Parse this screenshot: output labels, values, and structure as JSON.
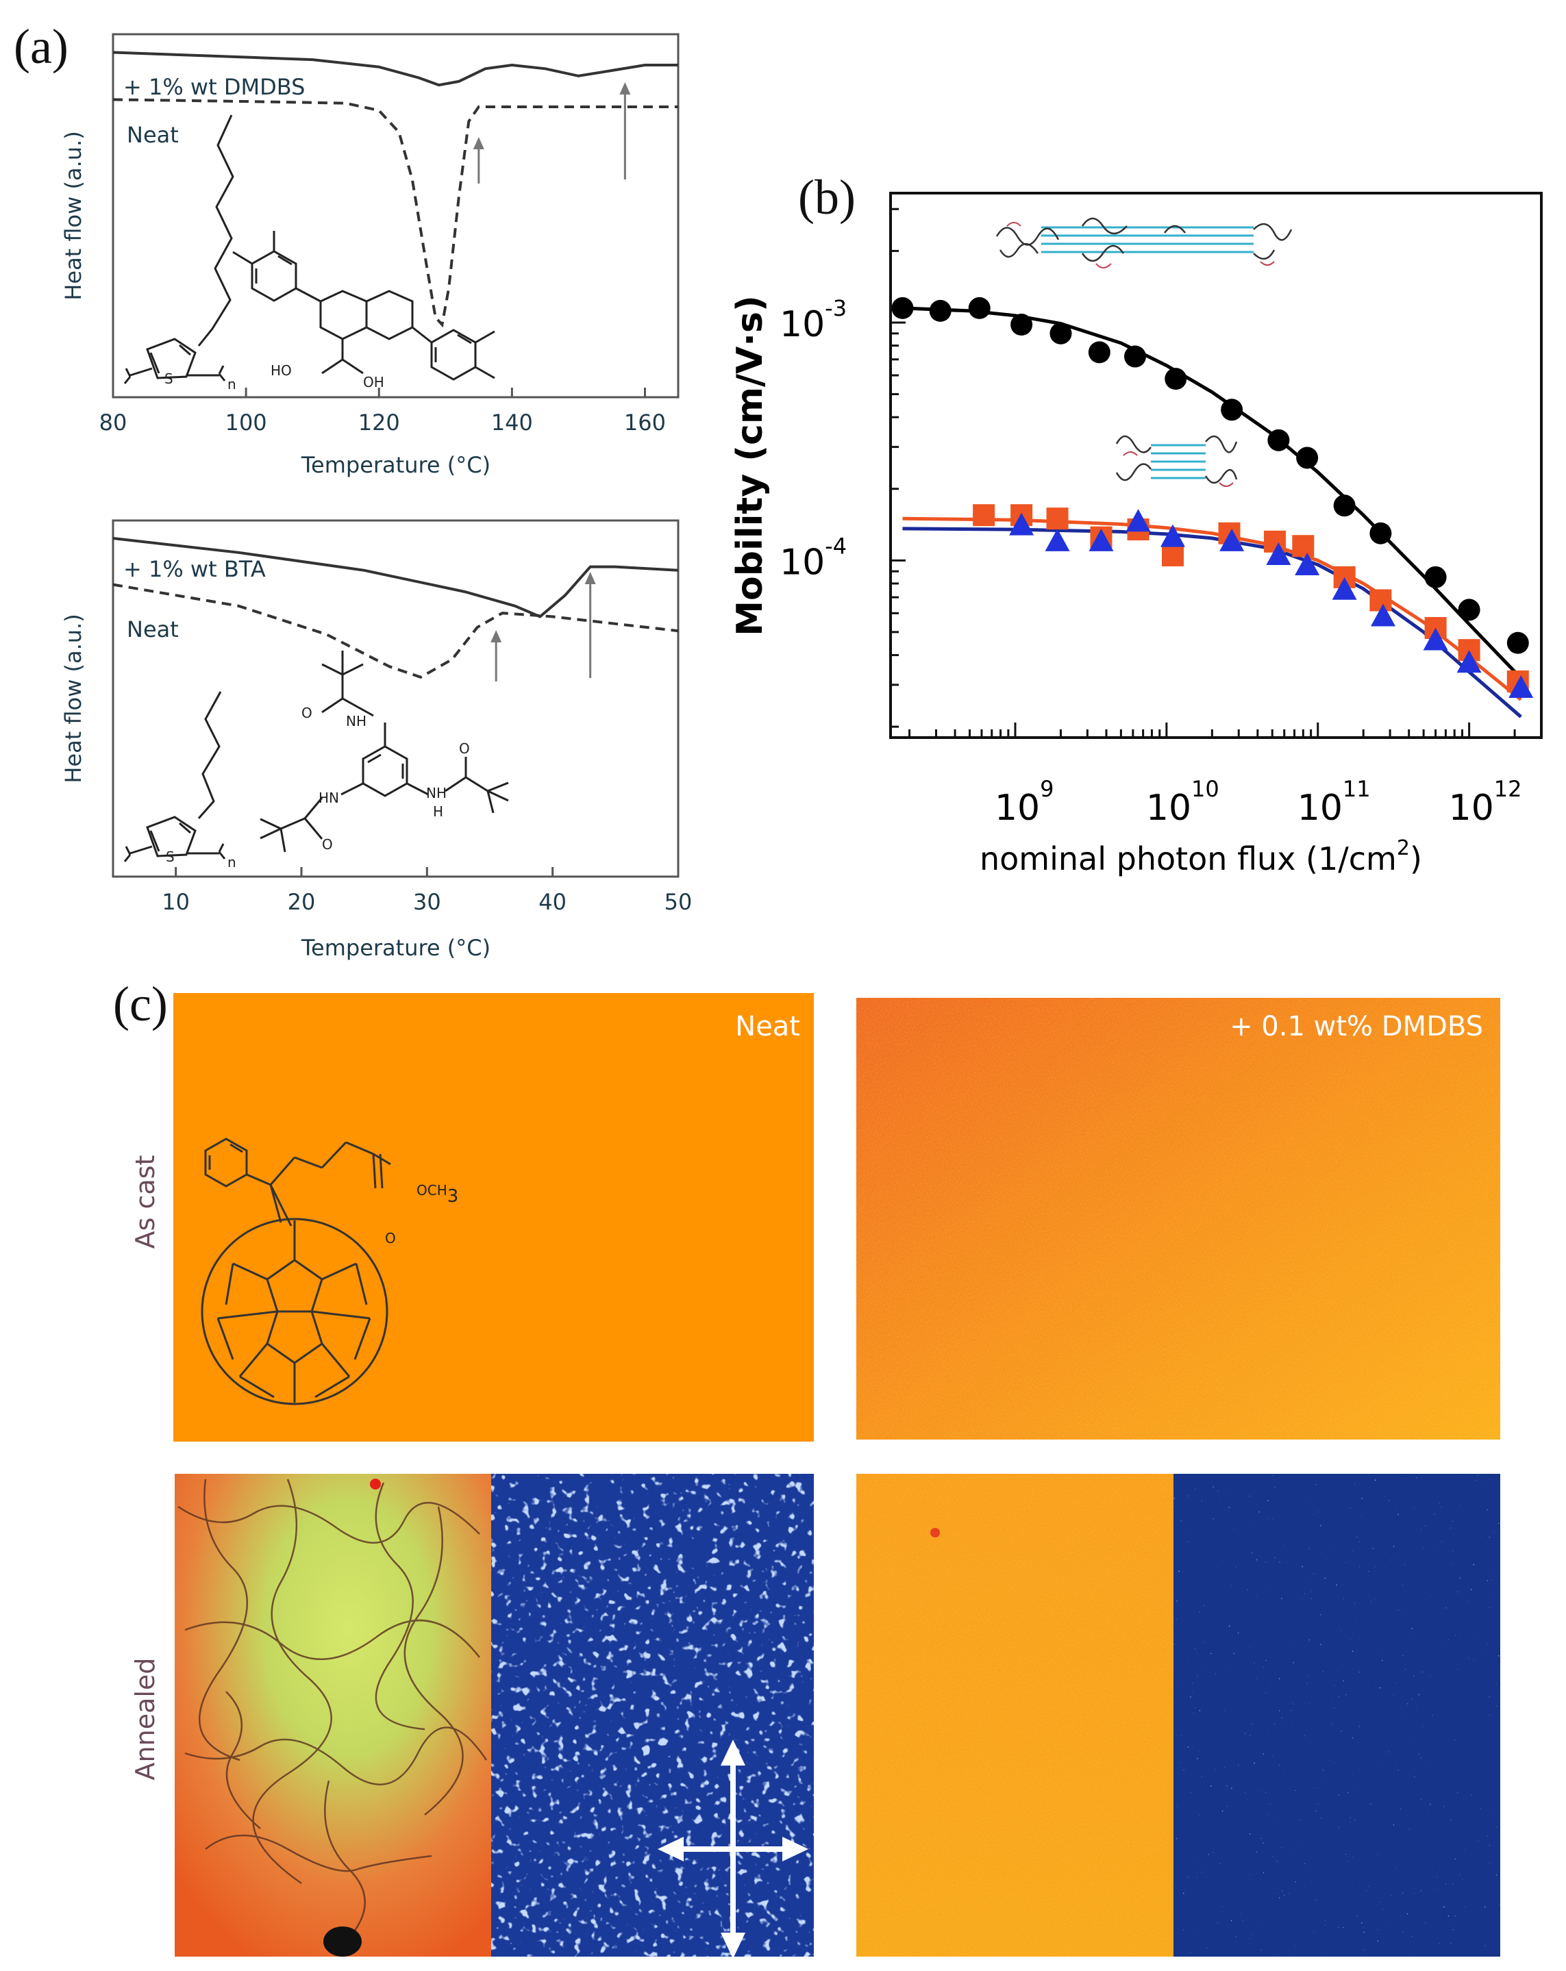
{
  "panels": {
    "a": "(a)",
    "b": "(b)",
    "c": "(c)"
  },
  "chart_data": [
    {
      "id": "a-top",
      "type": "line",
      "xlabel": "Temperature (°C)",
      "ylabel": "Heat flow (a.u.)",
      "xlim": [
        80,
        165
      ],
      "xticks": [
        80,
        100,
        120,
        140,
        160
      ],
      "series": [
        {
          "name": "+ 1% wt DMDBS",
          "style": "solid",
          "x": [
            80,
            95,
            110,
            120,
            126,
            129,
            132,
            136,
            140,
            145,
            150,
            155,
            160,
            165
          ],
          "y": [
            0.95,
            0.94,
            0.93,
            0.91,
            0.88,
            0.86,
            0.87,
            0.905,
            0.915,
            0.905,
            0.885,
            0.9,
            0.915,
            0.915
          ]
        },
        {
          "name": "Neat",
          "style": "dashed",
          "x": [
            80,
            100,
            115,
            120,
            123,
            125,
            127,
            128.5,
            129.5,
            130.5,
            132,
            133.5,
            135,
            140,
            150,
            165
          ],
          "y": [
            0.82,
            0.815,
            0.81,
            0.79,
            0.73,
            0.6,
            0.38,
            0.22,
            0.2,
            0.3,
            0.55,
            0.76,
            0.8,
            0.8,
            0.8,
            0.8
          ]
        }
      ],
      "arrows_at": [
        135,
        157
      ],
      "chem_labels": [
        "HO",
        "OH",
        "S",
        "n"
      ]
    },
    {
      "id": "a-bottom",
      "type": "line",
      "xlabel": "Temperature (°C)",
      "ylabel": "Heat flow (a.u.)",
      "xlim": [
        5,
        50
      ],
      "xticks": [
        10,
        20,
        30,
        40,
        50
      ],
      "series": [
        {
          "name": "+ 1% wt BTA",
          "style": "solid",
          "x": [
            5,
            15,
            25,
            33,
            37,
            39,
            41,
            43,
            45,
            50
          ],
          "y": [
            0.95,
            0.91,
            0.86,
            0.8,
            0.76,
            0.73,
            0.79,
            0.87,
            0.87,
            0.86
          ]
        },
        {
          "name": "Neat",
          "style": "dashed",
          "x": [
            5,
            15,
            22,
            27,
            29.5,
            32,
            34,
            36,
            40,
            45,
            50
          ],
          "y": [
            0.82,
            0.76,
            0.68,
            0.59,
            0.56,
            0.61,
            0.7,
            0.74,
            0.73,
            0.71,
            0.69
          ]
        }
      ],
      "arrows_at": [
        35.5,
        43
      ],
      "chem_labels": [
        "NH",
        "HN",
        "NH",
        "H",
        "O",
        "O",
        "O",
        "S",
        "n"
      ]
    },
    {
      "id": "b",
      "type": "scatter",
      "xlabel": "nominal photon flux (1/cm",
      "xlabel_sup": "2",
      "xlabel_end": ")",
      "ylabel": "Mobility (cm/V·s)",
      "xscale": "log",
      "yscale": "log",
      "xlim": [
        150000000.0,
        3000000000000.0
      ],
      "ylim": [
        1.8e-05,
        0.0035
      ],
      "xticks": [
        {
          "base": "10",
          "exp": "9",
          "value": 1000000000.0
        },
        {
          "base": "10",
          "exp": "10",
          "value": 10000000000.0
        },
        {
          "base": "10",
          "exp": "11",
          "value": 100000000000.0
        },
        {
          "base": "10",
          "exp": "12",
          "value": 1000000000000.0
        }
      ],
      "yticks": [
        {
          "base": "10",
          "exp": "-3",
          "value": 0.001
        },
        {
          "base": "10",
          "exp": "-4",
          "value": 0.0001
        }
      ],
      "series": [
        {
          "marker": "circle",
          "color": "#000000",
          "x": [
            180000000.0,
            320000000.0,
            580000000.0,
            1100000000.0,
            2000000000.0,
            3600000000.0,
            6200000000.0,
            11500000000.0,
            27000000000.0,
            55000000000.0,
            85000000000.0,
            150000000000.0,
            260000000000.0,
            600000000000.0,
            1000000000000.0,
            2100000000000.0
          ],
          "y": [
            0.00115,
            0.00112,
            0.00115,
            0.00098,
            0.0009,
            0.00075,
            0.00072,
            0.00058,
            0.00043,
            0.00032,
            0.00027,
            0.00017,
            0.00013,
            8.5e-05,
            6.2e-05,
            4.5e-05
          ]
        },
        {
          "marker": "square",
          "color": "#ee5522",
          "x": [
            620000000.0,
            1100000000.0,
            1900000000.0,
            3700000000.0,
            6500000000.0,
            11000000000.0,
            26000000000.0,
            52000000000.0,
            80000000000.0,
            150000000000.0,
            260000000000.0,
            600000000000.0,
            1000000000000.0,
            2100000000000.0
          ],
          "y": [
            0.000155,
            0.000155,
            0.00015,
            0.000125,
            0.000135,
            0.000105,
            0.00013,
            0.00012,
            0.000115,
            8.5e-05,
            6.8e-05,
            5.2e-05,
            4.2e-05,
            3.1e-05
          ]
        },
        {
          "marker": "triangle",
          "color": "#2233dd",
          "x": [
            1100000000.0,
            1900000000.0,
            3700000000.0,
            6500000000.0,
            11000000000.0,
            27000000000.0,
            55000000000.0,
            85000000000.0,
            150000000000.0,
            270000000000.0,
            600000000000.0,
            1000000000000.0,
            2200000000000.0
          ],
          "y": [
            0.00014,
            0.00012,
            0.00012,
            0.000145,
            0.000125,
            0.00012,
            0.000105,
            9.5e-05,
            7.5e-05,
            5.8e-05,
            4.6e-05,
            3.7e-05,
            2.9e-05
          ]
        }
      ],
      "fits": [
        {
          "color": "#000000",
          "x": [
            180000000.0,
            500000000.0,
            1000000000.0,
            2000000000.0,
            5000000000.0,
            10000000000.0,
            20000000000.0,
            50000000000.0,
            100000000000.0,
            200000000000.0,
            500000000000.0,
            1000000000000.0,
            2200000000000.0
          ],
          "y": [
            0.00115,
            0.00112,
            0.00107,
            0.00099,
            0.00082,
            0.00066,
            0.00051,
            0.00034,
            0.000235,
            0.000155,
            8.6e-05,
            5.4e-05,
            3.2e-05
          ]
        },
        {
          "color": "#ee5522",
          "x": [
            180000000.0,
            1000000000.0,
            5000000000.0,
            10000000000.0,
            20000000000.0,
            50000000000.0,
            100000000000.0,
            200000000000.0,
            500000000000.0,
            1000000000000.0,
            2200000000000.0
          ],
          "y": [
            0.00015,
            0.000148,
            0.000142,
            0.000137,
            0.00013,
            0.000116,
            0.0001,
            8e-05,
            5.5e-05,
            3.9e-05,
            2.6e-05
          ]
        },
        {
          "color": "#1a2a9a",
          "x": [
            180000000.0,
            1000000000.0,
            5000000000.0,
            10000000000.0,
            20000000000.0,
            50000000000.0,
            100000000000.0,
            200000000000.0,
            500000000000.0,
            1000000000000.0,
            2200000000000.0
          ],
          "y": [
            0.000136,
            0.000135,
            0.000132,
            0.000129,
            0.000124,
            0.000112,
            9.6e-05,
            7.6e-05,
            5e-05,
            3.4e-05,
            2.2e-05
          ]
        }
      ]
    }
  ],
  "images": {
    "neat_label": "Neat",
    "dmdbs_label": "+ 0.1 wt% DMDBS",
    "row1_label": "As cast",
    "row2_label": "Annealed",
    "methyl_ester": "OCH",
    "methyl_sub": "3",
    "carbonyl_o": "O",
    "colors": {
      "orange": "#ff9300",
      "blue": "#16348a"
    }
  }
}
